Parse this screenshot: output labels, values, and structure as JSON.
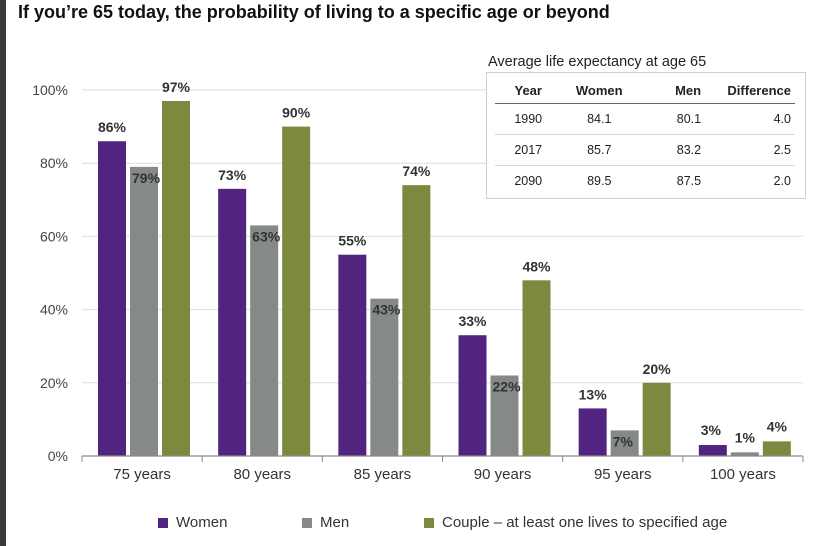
{
  "title": "If you’re 65 today, the probability of living to a specific age or beyond",
  "chart_data": {
    "type": "bar",
    "categories": [
      "75 years",
      "80 years",
      "85 years",
      "90 years",
      "95 years",
      "100 years"
    ],
    "series": [
      {
        "name": "Women",
        "values": [
          86,
          73,
          55,
          33,
          13,
          3
        ],
        "labels": [
          "86%",
          "73%",
          "55%",
          "33%",
          "13%",
          "3%"
        ],
        "color": "#51257f"
      },
      {
        "name": "Men",
        "values": [
          79,
          63,
          43,
          22,
          7,
          1
        ],
        "labels": [
          "79%",
          "63%",
          "43%",
          "22%",
          "7%",
          "1%"
        ],
        "color": "#858a87"
      },
      {
        "name": "Couple – at least one lives to specified age",
        "values": [
          97,
          90,
          74,
          48,
          20,
          4
        ],
        "labels": [
          "97%",
          "90%",
          "74%",
          "48%",
          "20%",
          "4%"
        ],
        "color": "#7b8a3e"
      }
    ],
    "yticks": [
      "0%",
      "20%",
      "40%",
      "60%",
      "80%",
      "100%"
    ],
    "ylim": [
      0,
      100
    ],
    "grid": true,
    "legend_position": "bottom"
  },
  "inset": {
    "title": "Average life expectancy at age 65",
    "headers": [
      "Year",
      "Women",
      "Men",
      "Difference"
    ],
    "rows": [
      [
        "1990",
        "84.1",
        "80.1",
        "4.0"
      ],
      [
        "2017",
        "85.7",
        "83.2",
        "2.5"
      ],
      [
        "2090",
        "89.5",
        "87.5",
        "2.0"
      ]
    ]
  },
  "legend": {
    "women": "Women",
    "men": "Men",
    "couple": "Couple – at least one lives to specified age"
  }
}
